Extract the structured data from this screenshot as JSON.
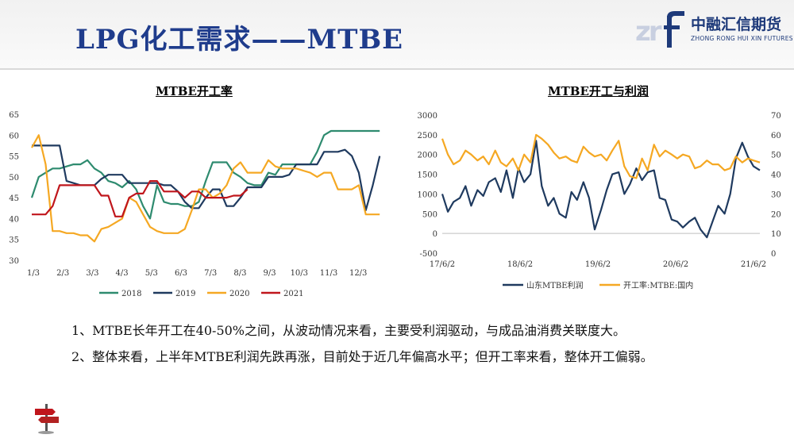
{
  "header": {
    "title": "LPG化工需求——MTBE",
    "logo_cn": "中融汇信期货",
    "logo_en": "ZHONG RONG HUI XIN FUTURES",
    "logo_mark": "zr"
  },
  "colors": {
    "title": "#1f3c8c",
    "s2018": "#2e8b6f",
    "s2019": "#1f3a5f",
    "s2020": "#f5a823",
    "s2021": "#c0161c",
    "profit": "#1f3a5f",
    "rate": "#f5a823"
  },
  "chart_data": [
    {
      "type": "line",
      "title": "MTBE开工率",
      "ylim": [
        30,
        65
      ],
      "yticks": [
        "30",
        "35",
        "40",
        "45",
        "50",
        "55",
        "60",
        "65"
      ],
      "xticks": [
        "1/3",
        "2/3",
        "3/3",
        "4/3",
        "5/3",
        "6/3",
        "7/3",
        "8/3",
        "9/3",
        "10/3",
        "11/3",
        "12/3"
      ],
      "x_range_weeks": [
        0,
        51
      ],
      "grid": false,
      "legend_position": "bottom",
      "series": [
        {
          "name": "2018",
          "color": "#2e8b6f",
          "x": [
            0,
            1,
            2,
            3,
            4,
            5,
            6,
            7,
            8,
            9,
            10,
            11,
            12,
            13,
            14,
            15,
            16,
            17,
            18,
            19,
            20,
            21,
            22,
            23,
            24,
            25,
            26,
            27,
            28,
            29,
            30,
            31,
            32,
            33,
            34,
            35,
            36,
            37,
            38,
            39,
            40,
            41,
            42,
            43,
            44,
            45,
            46,
            47,
            48,
            49,
            50
          ],
          "y": [
            45,
            50,
            51,
            52,
            52,
            52.5,
            53,
            53,
            54,
            52,
            51,
            49,
            48.5,
            47.5,
            49,
            47,
            43,
            40,
            48,
            44,
            43.5,
            43.5,
            43,
            43,
            44,
            49,
            53.5,
            53.5,
            53.5,
            51,
            50,
            48.5,
            48,
            48,
            51,
            50.5,
            53,
            53,
            53,
            53,
            53,
            56,
            60,
            61,
            61,
            61,
            61,
            61,
            61,
            61,
            61
          ]
        },
        {
          "name": "2019",
          "color": "#1f3a5f",
          "x": [
            0,
            1,
            2,
            3,
            4,
            5,
            6,
            7,
            8,
            9,
            10,
            11,
            12,
            13,
            14,
            15,
            16,
            17,
            18,
            19,
            20,
            21,
            22,
            23,
            24,
            25,
            26,
            27,
            28,
            29,
            30,
            31,
            32,
            33,
            34,
            35,
            36,
            37,
            38,
            39,
            40,
            41,
            42,
            43,
            44,
            45,
            46,
            47,
            48,
            49,
            50
          ],
          "y": [
            57.5,
            57.5,
            57.5,
            57.5,
            57.5,
            49,
            48.5,
            48,
            48,
            48,
            49.5,
            50.5,
            50.5,
            50.5,
            48.5,
            48.5,
            48.5,
            48.5,
            48.5,
            48,
            48,
            46.5,
            44,
            42.5,
            42.5,
            45,
            47,
            47,
            43,
            43,
            45,
            47.5,
            47.5,
            47.5,
            50,
            50,
            50,
            50.5,
            53,
            53,
            53,
            53,
            56,
            56,
            56,
            56.5,
            55,
            51,
            42,
            48,
            55
          ]
        },
        {
          "name": "2020",
          "color": "#f5a823",
          "x": [
            0,
            1,
            2,
            3,
            4,
            5,
            6,
            7,
            8,
            9,
            10,
            11,
            12,
            13,
            14,
            15,
            16,
            17,
            18,
            19,
            20,
            21,
            22,
            23,
            24,
            25,
            26,
            27,
            28,
            29,
            30,
            31,
            32,
            33,
            34,
            35,
            36,
            37,
            38,
            39,
            40,
            41,
            42,
            43,
            44,
            45,
            46,
            47,
            48,
            49,
            50
          ],
          "y": [
            57,
            60,
            53,
            37,
            37,
            36.5,
            36.5,
            36,
            36,
            34.5,
            37.5,
            38,
            39,
            40,
            45,
            44,
            41,
            38,
            37,
            36.5,
            36.5,
            36.5,
            37.5,
            42,
            47,
            47,
            45,
            46,
            48,
            52,
            53.5,
            51,
            51,
            51,
            54,
            52.5,
            52,
            52,
            52,
            51.5,
            51,
            50,
            51,
            51,
            47,
            47,
            47,
            48,
            41,
            41,
            41
          ]
        },
        {
          "name": "2021",
          "color": "#c0161c",
          "x": [
            0,
            1,
            2,
            3,
            4,
            5,
            6,
            7,
            8,
            9,
            10,
            11,
            12,
            13,
            14,
            15,
            16,
            17,
            18,
            19,
            20,
            21,
            22,
            23,
            24,
            25,
            26,
            27,
            28,
            29,
            30,
            31
          ],
          "y": [
            41,
            41,
            41,
            43,
            48,
            48,
            48,
            48,
            48,
            48,
            45.5,
            45.5,
            40.5,
            40.5,
            45,
            46,
            46,
            49,
            49,
            46.5,
            46.5,
            46.5,
            45,
            46.5,
            46.5,
            45,
            45,
            45,
            45,
            45.5,
            45.5,
            47
          ]
        }
      ]
    },
    {
      "type": "line",
      "title": "MTBE开工与利润",
      "ylim_left": [
        -500,
        3000
      ],
      "yticks_left": [
        "-500",
        "0",
        "500",
        "1000",
        "1500",
        "2000",
        "2500",
        "3000"
      ],
      "ylim_right": [
        0,
        70
      ],
      "yticks_right": [
        "0",
        "10",
        "20",
        "30",
        "40",
        "50",
        "60",
        "70"
      ],
      "xticks": [
        "17/6/2",
        "18/6/2",
        "19/6/2",
        "20/6/2",
        "21/6/2"
      ],
      "x_range_years": [
        2017.42,
        2021.92
      ],
      "grid": false,
      "legend_position": "bottom",
      "series": [
        {
          "name": "山东MTBE利润",
          "axis": "left",
          "color": "#1f3a5f",
          "x": [
            2017.42,
            2017.5,
            2017.58,
            2017.67,
            2017.75,
            2017.83,
            2017.92,
            2018.0,
            2018.08,
            2018.17,
            2018.25,
            2018.33,
            2018.42,
            2018.5,
            2018.58,
            2018.67,
            2018.75,
            2018.83,
            2018.92,
            2019.0,
            2019.08,
            2019.17,
            2019.25,
            2019.33,
            2019.42,
            2019.5,
            2019.58,
            2019.67,
            2019.75,
            2019.83,
            2019.92,
            2020.0,
            2020.08,
            2020.17,
            2020.25,
            2020.33,
            2020.42,
            2020.5,
            2020.58,
            2020.67,
            2020.75,
            2020.83,
            2020.92,
            2021.0,
            2021.08,
            2021.17,
            2021.25,
            2021.33,
            2021.42,
            2021.5,
            2021.58,
            2021.67,
            2021.75,
            2021.83,
            2021.92
          ],
          "y": [
            1000,
            550,
            800,
            900,
            1200,
            700,
            1100,
            950,
            1300,
            1400,
            1050,
            1600,
            900,
            1650,
            1300,
            1500,
            2350,
            1200,
            700,
            900,
            500,
            400,
            1050,
            850,
            1300,
            900,
            100,
            600,
            1100,
            1500,
            1550,
            1000,
            1250,
            1650,
            1350,
            1550,
            1600,
            900,
            850,
            350,
            300,
            150,
            300,
            400,
            100,
            -100,
            300,
            700,
            500,
            1000,
            1900,
            2300,
            1950,
            1700,
            1600
          ]
        },
        {
          "name": "开工率:MTBE:国内",
          "axis": "right",
          "color": "#f5a823",
          "x": [
            2017.42,
            2017.5,
            2017.58,
            2017.67,
            2017.75,
            2017.83,
            2017.92,
            2018.0,
            2018.08,
            2018.17,
            2018.25,
            2018.33,
            2018.42,
            2018.5,
            2018.58,
            2018.67,
            2018.75,
            2018.83,
            2018.92,
            2019.0,
            2019.08,
            2019.17,
            2019.25,
            2019.33,
            2019.42,
            2019.5,
            2019.58,
            2019.67,
            2019.75,
            2019.83,
            2019.92,
            2020.0,
            2020.08,
            2020.17,
            2020.25,
            2020.33,
            2020.42,
            2020.5,
            2020.58,
            2020.67,
            2020.75,
            2020.83,
            2020.92,
            2021.0,
            2021.08,
            2021.17,
            2021.25,
            2021.33,
            2021.42,
            2021.5,
            2021.58,
            2021.67,
            2021.75,
            2021.83,
            2021.92
          ],
          "y": [
            58,
            50,
            45,
            47,
            52,
            50,
            47,
            49,
            45,
            52,
            46,
            44,
            48,
            42,
            50,
            46,
            60,
            58,
            55,
            51,
            48,
            49,
            47,
            46,
            54,
            51,
            49,
            50,
            47,
            52,
            57,
            44,
            39,
            38,
            48,
            42,
            55,
            49,
            52,
            50,
            48,
            50,
            49,
            43,
            44,
            47,
            45,
            45,
            42,
            43,
            49,
            46,
            48,
            47,
            46
          ]
        }
      ]
    }
  ],
  "bullets": [
    "1、MTBE长年开工在40-50%之间，从波动情况来看，主要受利润驱动，与成品油消费关联度大。",
    "2、整体来看，上半年MTBE利润先跌再涨，目前处于近几年偏高水平；但开工率来看，整体开工偏弱。"
  ]
}
